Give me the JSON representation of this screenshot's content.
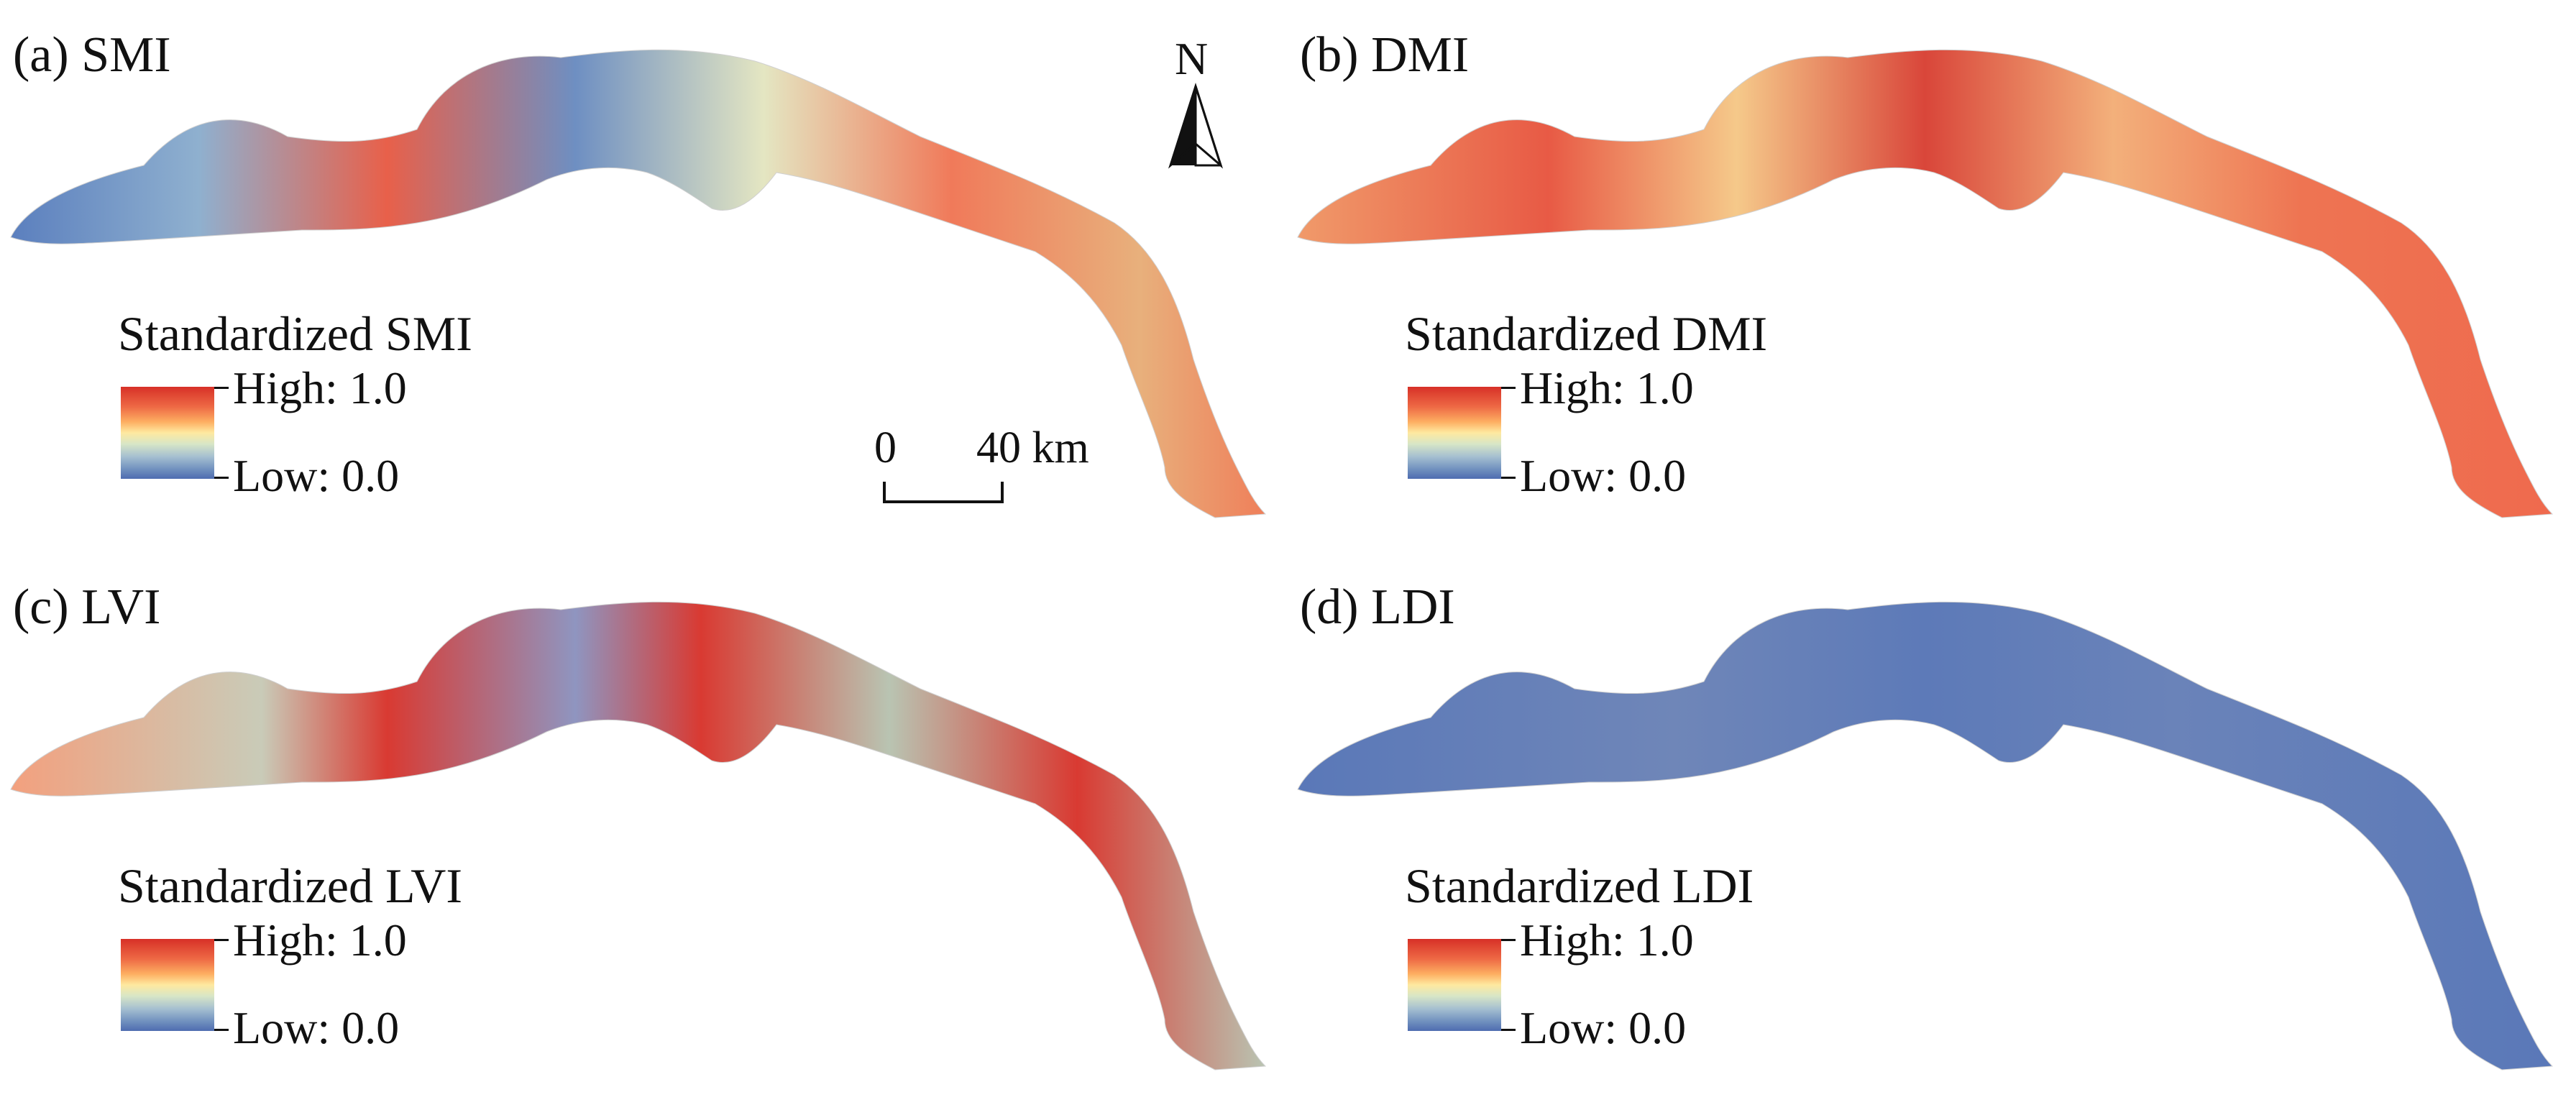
{
  "panels": [
    {
      "id": "a",
      "label": "(a) SMI",
      "legend_title": "Standardized SMI",
      "legend_high": "High: 1.0",
      "legend_low": "Low:  0.0",
      "dominant_color": "#7f9cc4"
    },
    {
      "id": "b",
      "label": "(b) DMI",
      "legend_title": "Standardized DMI",
      "legend_high": "High: 1.0",
      "legend_low": "Low:  0.0",
      "dominant_color": "#f08a5d"
    },
    {
      "id": "c",
      "label": "(c) LVI",
      "legend_title": "Standardized LVI",
      "legend_high": "High: 1.0",
      "legend_low": "Low:  0.0",
      "dominant_color": "#b9c4b2"
    },
    {
      "id": "d",
      "label": "(d) LDI",
      "legend_title": "Standardized LDI",
      "legend_high": "High: 1.0",
      "legend_low": "Low:  0.0",
      "dominant_color": "#5a78b8"
    }
  ],
  "scale_bar": {
    "start": "0",
    "end": "40 km"
  },
  "north_arrow": {
    "letter": "N",
    "icon": "north-arrow-icon"
  },
  "colors": {
    "high": "#d73027",
    "mid": "#fee9a0",
    "low": "#4e6cb0"
  }
}
